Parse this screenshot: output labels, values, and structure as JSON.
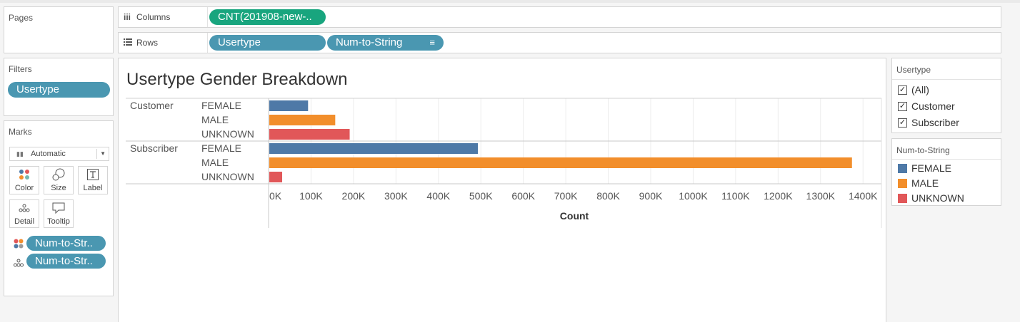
{
  "pages": {
    "title": "Pages"
  },
  "columns_shelf": {
    "label": "Columns",
    "pill": "CNT(201908-new-.."
  },
  "rows_shelf": {
    "label": "Rows",
    "pill1": "Usertype",
    "pill2": "Num-to-String"
  },
  "filters": {
    "title": "Filters",
    "pill": "Usertype"
  },
  "marks": {
    "title": "Marks",
    "type": "Automatic",
    "buttons": {
      "color": "Color",
      "size": "Size",
      "label": "Label",
      "detail": "Detail",
      "tooltip": "Tooltip"
    },
    "pills": [
      "Num-to-Str..",
      "Num-to-Str.."
    ]
  },
  "legend_usertype": {
    "title": "Usertype",
    "items": [
      "(All)",
      "Customer",
      "Subscriber"
    ]
  },
  "legend_num": {
    "title": "Num-to-String",
    "items": [
      "FEMALE",
      "MALE",
      "UNKNOWN"
    ]
  },
  "colors": {
    "FEMALE": "#4e79a7",
    "MALE": "#f28e2b",
    "UNKNOWN": "#e15759",
    "pill_blue": "#4a97b1",
    "pill_green": "#18a57e"
  },
  "chart_data": {
    "type": "bar",
    "title": "Usertype Gender Breakdown",
    "xlabel": "Count",
    "xlim": [
      0,
      1440000
    ],
    "xticks": [
      0,
      100000,
      200000,
      300000,
      400000,
      500000,
      600000,
      700000,
      800000,
      900000,
      1000000,
      1100000,
      1200000,
      1300000,
      1400000
    ],
    "xtick_labels": [
      "0K",
      "100K",
      "200K",
      "300K",
      "400K",
      "500K",
      "600K",
      "700K",
      "800K",
      "900K",
      "1000K",
      "1100K",
      "1200K",
      "1300K",
      "1400K"
    ],
    "groups": [
      {
        "name": "Customer",
        "bars": [
          {
            "category": "FEMALE",
            "value": 93000
          },
          {
            "category": "MALE",
            "value": 157000
          },
          {
            "category": "UNKNOWN",
            "value": 191000
          }
        ]
      },
      {
        "name": "Subscriber",
        "bars": [
          {
            "category": "FEMALE",
            "value": 493000
          },
          {
            "category": "MALE",
            "value": 1374000
          },
          {
            "category": "UNKNOWN",
            "value": 32000
          }
        ]
      }
    ]
  }
}
